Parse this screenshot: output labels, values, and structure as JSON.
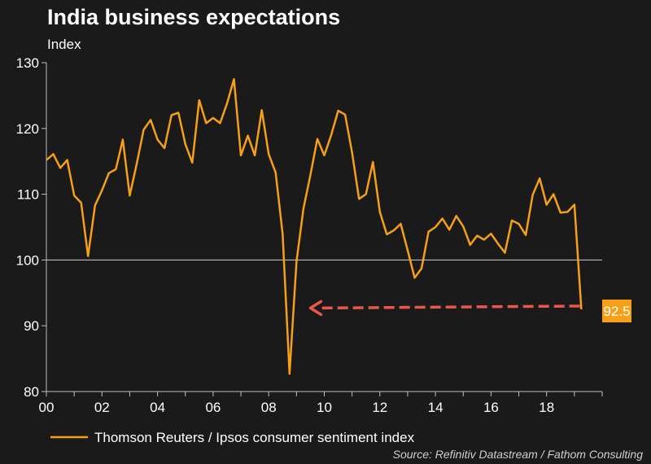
{
  "chart_data": {
    "type": "line",
    "title": "India business expectations",
    "ylabel": "Index",
    "ylim": [
      80,
      130
    ],
    "y_ticks": [
      80,
      90,
      100,
      110,
      120,
      130
    ],
    "xlim": [
      2000,
      2020
    ],
    "x_tick_labels": [
      "00",
      "02",
      "04",
      "06",
      "08",
      "10",
      "12",
      "14",
      "16",
      "18"
    ],
    "x_tick_values": [
      2000,
      2002,
      2004,
      2006,
      2008,
      2010,
      2012,
      2014,
      2016,
      2018
    ],
    "reference_line": 100,
    "series": [
      {
        "name": "Thomson Reuters / Ipsos consumer sentiment index",
        "color": "#f5a018",
        "x": [
          2000.0,
          2000.25,
          2000.5,
          2000.75,
          2001.0,
          2001.25,
          2001.5,
          2001.75,
          2002.0,
          2002.25,
          2002.5,
          2002.75,
          2003.0,
          2003.25,
          2003.5,
          2003.75,
          2004.0,
          2004.25,
          2004.5,
          2004.75,
          2005.0,
          2005.25,
          2005.5,
          2005.75,
          2006.0,
          2006.25,
          2006.5,
          2006.75,
          2007.0,
          2007.25,
          2007.5,
          2007.75,
          2008.0,
          2008.25,
          2008.5,
          2008.75,
          2009.0,
          2009.25,
          2009.5,
          2009.75,
          2010.0,
          2010.25,
          2010.5,
          2010.75,
          2011.0,
          2011.25,
          2011.5,
          2011.75,
          2012.0,
          2012.25,
          2012.5,
          2012.75,
          2013.0,
          2013.25,
          2013.5,
          2013.75,
          2014.0,
          2014.25,
          2014.5,
          2014.75,
          2015.0,
          2015.25,
          2015.5,
          2015.75,
          2016.0,
          2016.25,
          2016.5,
          2016.75,
          2017.0,
          2017.25,
          2017.5,
          2017.75,
          2018.0,
          2018.25,
          2018.5,
          2018.75,
          2019.0,
          2019.25
        ],
        "values": [
          115.2,
          116.1,
          114.0,
          115.2,
          109.8,
          108.7,
          100.6,
          108.3,
          110.6,
          113.2,
          113.8,
          118.3,
          109.8,
          114.6,
          119.8,
          121.3,
          118.3,
          117.0,
          122.0,
          122.4,
          117.6,
          114.8,
          124.3,
          120.8,
          121.6,
          120.8,
          123.8,
          127.5,
          115.9,
          118.9,
          115.9,
          122.8,
          116.1,
          113.3,
          104.0,
          82.7,
          99.8,
          107.8,
          112.9,
          118.4,
          115.9,
          119.0,
          122.7,
          122.1,
          116.3,
          109.3,
          110.0,
          114.9,
          107.3,
          103.9,
          104.5,
          105.5,
          101.5,
          97.3,
          98.7,
          104.3,
          105.0,
          106.3,
          104.6,
          106.7,
          105.1,
          102.3,
          103.7,
          103.1,
          104.0,
          102.5,
          101.1,
          106.0,
          105.5,
          103.8,
          109.9,
          112.4,
          108.4,
          110.0,
          107.2,
          107.3,
          108.4,
          92.5
        ]
      }
    ],
    "annotations": [
      {
        "type": "callout",
        "text": "92.5",
        "x": 2019.25,
        "y": 92.5,
        "color": "#f5a018"
      },
      {
        "type": "dashed-arrow",
        "from": [
          2019.2,
          93.0
        ],
        "to": [
          2009.5,
          92.7
        ],
        "color": "#e8584a"
      }
    ],
    "grid": false,
    "legend_position": "bottom-left"
  },
  "source": "Source: Refinitiv Datastream / Fathom Consulting",
  "colors": {
    "background": "#1a1a1a",
    "line": "#f5a018",
    "arrow": "#e8584a",
    "axis": "#bfbfbf"
  }
}
